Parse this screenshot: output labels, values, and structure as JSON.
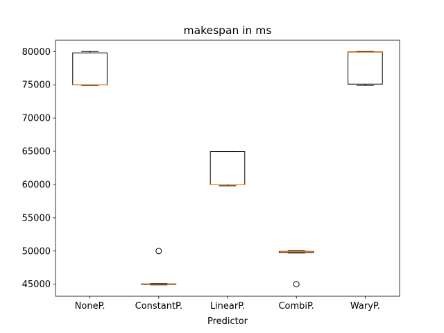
{
  "chart_data": {
    "type": "box",
    "title": "makespan in ms",
    "xlabel": "Predictor",
    "ylabel": "",
    "ylim": [
      43200,
      81700
    ],
    "yticks": [
      45000,
      50000,
      55000,
      60000,
      65000,
      70000,
      75000,
      80000
    ],
    "categories": [
      "NoneP.",
      "ConstantP.",
      "LinearP.",
      "CombiP.",
      "WaryP."
    ],
    "boxes": [
      {
        "whisker_low": 74900,
        "q1": 75000,
        "median": 75000,
        "q3": 79800,
        "whisker_high": 80000,
        "outliers": []
      },
      {
        "whisker_low": 44900,
        "q1": 44950,
        "median": 45000,
        "q3": 45050,
        "whisker_high": 45100,
        "outliers": [
          50000
        ]
      },
      {
        "whisker_low": 59800,
        "q1": 60000,
        "median": 60000,
        "q3": 64950,
        "whisker_high": 64950,
        "outliers": []
      },
      {
        "whisker_low": 49700,
        "q1": 49750,
        "median": 49900,
        "q3": 49950,
        "whisker_high": 50050,
        "outliers": [
          45000
        ]
      },
      {
        "whisker_low": 74900,
        "q1": 75100,
        "median": 79900,
        "q3": 79950,
        "whisker_high": 80000,
        "outliers": []
      }
    ],
    "grid": false,
    "colors": {
      "box": "#000000",
      "median": "#ff7f0e",
      "outlier": "#000000"
    }
  }
}
